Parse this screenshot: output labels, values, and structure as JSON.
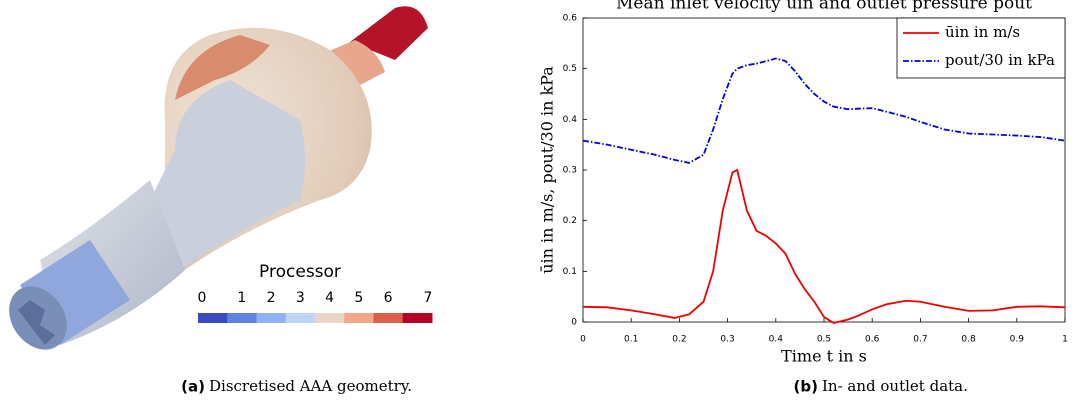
{
  "figure_a": {
    "colorbar_title": "Processor",
    "colorbar_labels": [
      "0",
      "1",
      "2",
      "3",
      "4",
      "5",
      "6",
      "7"
    ],
    "caption_label": "(a)",
    "caption_text": "Discretised AAA geometry."
  },
  "figure_b": {
    "caption_label": "(b)",
    "caption_text": "In- and outlet data."
  },
  "chart_data": {
    "type": "line",
    "title": "Mean inlet velocity ūin and outlet pressure pout",
    "x_label": "Time t in s",
    "y_label": "ūin in m/s, pout/30 in kPa",
    "x": [
      0,
      0.05,
      0.1,
      0.15,
      0.19,
      0.22,
      0.25,
      0.27,
      0.29,
      0.31,
      0.32,
      0.34,
      0.36,
      0.38,
      0.4,
      0.42,
      0.44,
      0.46,
      0.48,
      0.5,
      0.52,
      0.55,
      0.57,
      0.6,
      0.63,
      0.67,
      0.7,
      0.75,
      0.8,
      0.85,
      0.9,
      0.95,
      1
    ],
    "series": [
      {
        "name": "ūin in m/s",
        "color": "#ee0000",
        "dash": "solid",
        "values": [
          0.03,
          0.029,
          0.023,
          0.015,
          0.008,
          0.015,
          0.04,
          0.1,
          0.22,
          0.295,
          0.3,
          0.22,
          0.18,
          0.17,
          0.155,
          0.135,
          0.095,
          0.065,
          0.04,
          0.01,
          -0.002,
          0.005,
          0.012,
          0.025,
          0.035,
          0.042,
          0.04,
          0.03,
          0.022,
          0.023,
          0.03,
          0.031,
          0.029
        ]
      },
      {
        "name": "pout/30 in kPa",
        "color": "#0000dd",
        "dash": "dashdot",
        "values": [
          0.358,
          0.35,
          0.34,
          0.33,
          0.32,
          0.314,
          0.33,
          0.38,
          0.44,
          0.49,
          0.5,
          0.507,
          0.51,
          0.515,
          0.52,
          0.515,
          0.495,
          0.47,
          0.45,
          0.435,
          0.425,
          0.42,
          0.421,
          0.422,
          0.415,
          0.405,
          0.395,
          0.38,
          0.372,
          0.37,
          0.368,
          0.365,
          0.358
        ]
      }
    ],
    "xlim": [
      0,
      1
    ],
    "xticks": [
      0,
      0.1,
      0.2,
      0.3,
      0.4,
      0.5,
      0.6,
      0.7,
      0.8,
      0.9,
      1
    ],
    "ylim": [
      0,
      0.6
    ],
    "yticks": [
      0,
      0.1,
      0.2,
      0.3,
      0.4,
      0.5,
      0.6
    ],
    "legend": "upper right"
  }
}
